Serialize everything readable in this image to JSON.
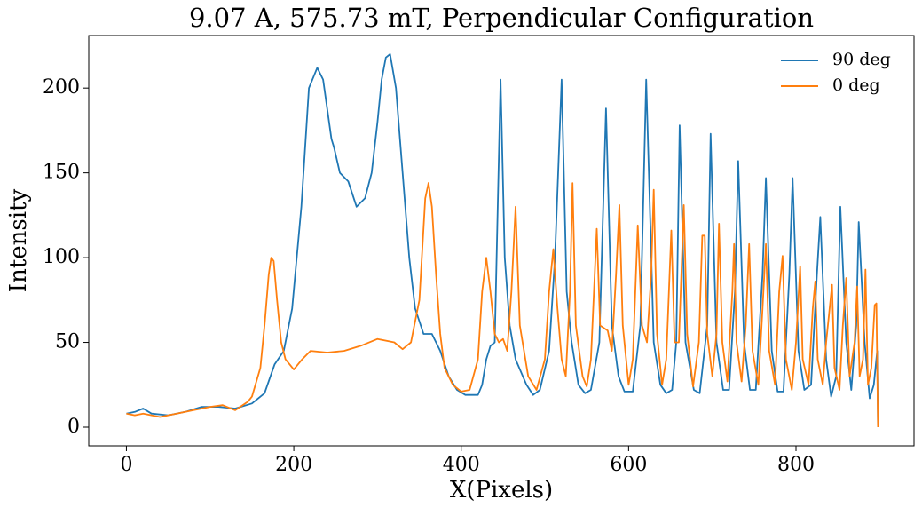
{
  "chart_data": {
    "type": "line",
    "title": "9.07 A, 575.73 mT, Perpendicular Configuration",
    "x_label": "X(Pixels)",
    "y_label": "Intensity",
    "xlim": [
      -45,
      941
    ],
    "ylim": [
      -11,
      231
    ],
    "xticks": [
      0,
      200,
      400,
      600,
      800
    ],
    "yticks": [
      0,
      50,
      100,
      150,
      200
    ],
    "legend": "upper right",
    "series": [
      {
        "name": "90 deg",
        "color": "#1f77b4",
        "x": [
          0,
          10,
          20,
          30,
          50,
          70,
          90,
          110,
          130,
          150,
          165,
          177,
          188,
          198,
          209,
          218,
          228,
          235,
          245,
          248,
          255,
          265,
          275,
          285,
          293,
          300,
          305,
          310,
          315,
          322,
          330,
          338,
          345,
          355,
          365,
          375,
          385,
          395,
          405,
          420,
          425,
          430,
          435,
          440,
          447,
          452,
          458,
          465,
          478,
          486,
          494,
          505,
          512,
          520,
          526,
          532,
          540,
          548,
          555,
          565,
          573,
          580,
          588,
          595,
          605,
          614,
          621,
          630,
          638,
          645,
          652,
          657,
          661,
          668,
          678,
          685,
          694,
          698,
          705,
          713,
          720,
          727,
          731,
          738,
          745,
          752,
          760,
          764,
          771,
          778,
          785,
          792,
          796,
          803,
          810,
          818,
          825,
          829,
          836,
          842,
          848,
          853,
          860,
          866,
          872,
          875,
          882,
          888,
          893,
          897,
          898
        ],
        "values": [
          8,
          9,
          11,
          8,
          7,
          9,
          12,
          12,
          11,
          14,
          20,
          37,
          45,
          70,
          130,
          200,
          212,
          205,
          170,
          165,
          150,
          145,
          130,
          135,
          150,
          180,
          205,
          218,
          220,
          200,
          150,
          100,
          70,
          55,
          55,
          45,
          30,
          22,
          19,
          19,
          25,
          40,
          48,
          50,
          205,
          100,
          60,
          40,
          25,
          19,
          22,
          45,
          100,
          205,
          80,
          50,
          25,
          20,
          22,
          50,
          188,
          60,
          30,
          21,
          21,
          60,
          205,
          50,
          25,
          20,
          22,
          50,
          178,
          50,
          22,
          20,
          60,
          173,
          50,
          22,
          22,
          80,
          157,
          50,
          22,
          22,
          90,
          147,
          45,
          21,
          21,
          90,
          147,
          45,
          22,
          25,
          90,
          124,
          40,
          18,
          30,
          130,
          50,
          22,
          60,
          121,
          50,
          17,
          25,
          45,
          0
        ]
      },
      {
        "name": "0 deg",
        "color": "#ff7f0e",
        "x": [
          0,
          10,
          20,
          40,
          60,
          80,
          100,
          115,
          130,
          145,
          150,
          160,
          165,
          170,
          173,
          176,
          180,
          185,
          190,
          200,
          210,
          220,
          240,
          260,
          280,
          300,
          320,
          330,
          340,
          350,
          357,
          361,
          365,
          370,
          375,
          380,
          390,
          400,
          410,
          420,
          425,
          430,
          435,
          440,
          445,
          450,
          455,
          460,
          465,
          470,
          480,
          490,
          500,
          505,
          510,
          515,
          520,
          525,
          530,
          533,
          537,
          545,
          550,
          555,
          562,
          566,
          575,
          580,
          585,
          589,
          593,
          600,
          605,
          611,
          616,
          622,
          627,
          630,
          634,
          640,
          645,
          651,
          655,
          660,
          666,
          670,
          677,
          684,
          688,
          691,
          694,
          700,
          705,
          708,
          712,
          718,
          724,
          726,
          729,
          735,
          740,
          744,
          748,
          755,
          760,
          764,
          768,
          775,
          780,
          784,
          788,
          795,
          800,
          805,
          808,
          815,
          820,
          823,
          826,
          832,
          836,
          843,
          846,
          852,
          856,
          860,
          864,
          870,
          873,
          876,
          880,
          883,
          886,
          890,
          894,
          896,
          898
        ],
        "values": [
          8,
          7,
          8,
          6,
          8,
          10,
          12,
          13,
          10,
          15,
          18,
          35,
          60,
          90,
          100,
          98,
          75,
          50,
          40,
          34,
          40,
          45,
          44,
          45,
          48,
          52,
          50,
          46,
          50,
          75,
          135,
          144,
          130,
          90,
          55,
          35,
          25,
          21,
          22,
          40,
          80,
          100,
          80,
          55,
          50,
          52,
          45,
          80,
          130,
          60,
          30,
          22,
          40,
          80,
          105,
          70,
          40,
          30,
          80,
          144,
          60,
          30,
          24,
          40,
          117,
          60,
          57,
          45,
          90,
          131,
          60,
          25,
          40,
          119,
          60,
          50,
          90,
          140,
          55,
          25,
          40,
          116,
          50,
          50,
          131,
          55,
          24,
          50,
          113,
          113,
          55,
          30,
          55,
          120,
          50,
          27,
          80,
          108,
          50,
          27,
          60,
          108,
          45,
          25,
          70,
          108,
          45,
          25,
          80,
          101,
          40,
          22,
          50,
          95,
          40,
          25,
          70,
          86,
          40,
          25,
          50,
          84,
          35,
          22,
          60,
          88,
          30,
          50,
          83,
          30,
          40,
          93,
          25,
          35,
          72,
          73,
          0
        ]
      }
    ]
  }
}
